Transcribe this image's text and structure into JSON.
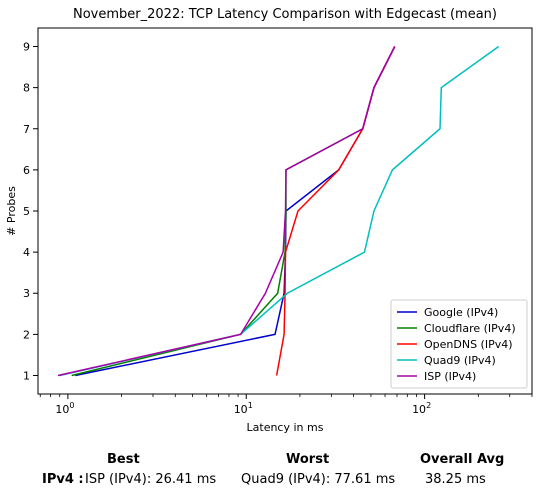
{
  "chart_data": {
    "type": "line",
    "title": "November_2022: TCP Latency Comparison with Edgecast (mean)",
    "xlabel": "Latency in ms",
    "ylabel": "# Probes",
    "xscale": "log",
    "xlim": [
      0.68,
      400
    ],
    "ylim": [
      0.55,
      9.45
    ],
    "x_ticks": [
      1,
      10,
      100
    ],
    "x_tick_labels": [
      "10^0",
      "10^1",
      "10^2"
    ],
    "y_ticks": [
      1,
      2,
      3,
      4,
      5,
      6,
      7,
      8,
      9
    ],
    "grid": false,
    "legend_position": "lower-right",
    "series": [
      {
        "name": "Google (IPv4)",
        "color": "#0000cc",
        "points": [
          [
            1.1,
            1
          ],
          [
            14.5,
            2
          ],
          [
            16.3,
            3
          ],
          [
            16.6,
            4
          ],
          [
            16.7,
            5
          ],
          [
            33,
            6
          ],
          [
            45,
            7
          ],
          [
            52,
            8
          ],
          [
            68,
            9
          ]
        ]
      },
      {
        "name": "Cloudflare (IPv4)",
        "color": "#008000",
        "points": [
          [
            1.05,
            1
          ],
          [
            9.3,
            2
          ],
          [
            15,
            3
          ],
          [
            16.5,
            4
          ],
          [
            16.7,
            5
          ],
          [
            16.7,
            6
          ],
          [
            45,
            7
          ],
          [
            52,
            8
          ],
          [
            68,
            9
          ]
        ]
      },
      {
        "name": "OpenDNS (IPv4)",
        "color": "#ff0000",
        "points": [
          [
            14.8,
            1
          ],
          [
            16.3,
            2
          ],
          [
            16.5,
            3
          ],
          [
            16.6,
            4
          ],
          [
            19.5,
            5
          ],
          [
            33,
            6
          ],
          [
            45,
            7
          ],
          [
            52,
            8
          ],
          [
            68,
            9
          ]
        ]
      },
      {
        "name": "Quad9 (IPv4)",
        "color": "#00bfbf",
        "points": [
          [
            0.9,
            1
          ],
          [
            9.3,
            2
          ],
          [
            17,
            3
          ],
          [
            46,
            4
          ],
          [
            52,
            5
          ],
          [
            66,
            6
          ],
          [
            122,
            7
          ],
          [
            124,
            8
          ],
          [
            260,
            9
          ]
        ]
      },
      {
        "name": "ISP (IPv4)",
        "color": "#aa00aa",
        "points": [
          [
            0.88,
            1
          ],
          [
            9.3,
            2
          ],
          [
            12.8,
            3
          ],
          [
            16.1,
            4
          ],
          [
            16.6,
            5
          ],
          [
            16.7,
            6
          ],
          [
            45,
            7
          ],
          [
            52,
            8
          ],
          [
            68,
            9
          ]
        ]
      }
    ]
  },
  "summary": {
    "best_header": "Best",
    "worst_header": "Worst",
    "avg_header": "Overall Avg",
    "row_label": "IPv4 :",
    "best_value": "ISP (IPv4): 26.41 ms",
    "worst_value": "Quad9 (IPv4): 77.61 ms",
    "avg_value": "38.25 ms"
  }
}
